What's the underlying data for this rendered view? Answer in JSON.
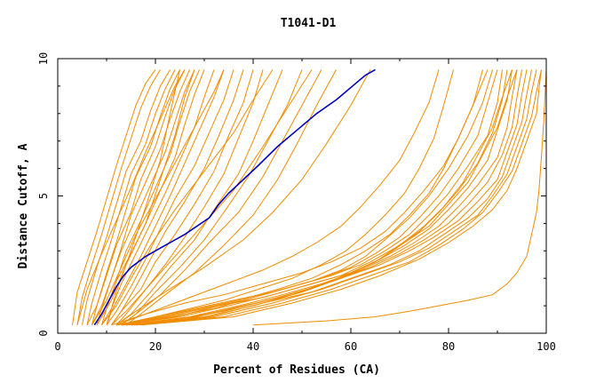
{
  "chart_data": {
    "type": "line",
    "title": "T1041-D1",
    "xlabel": "Percent of Residues (CA)",
    "ylabel": "Distance Cutoff, A",
    "xlim": [
      0,
      100
    ],
    "ylim": [
      0,
      10
    ],
    "xticks": [
      "0",
      "20",
      "40",
      "60",
      "80",
      "100"
    ],
    "yticks": [
      "0",
      "5",
      "10"
    ],
    "grid": false,
    "legend": "none",
    "colors": {
      "models": "#f08c00",
      "highlight": "#0000c0"
    },
    "highlight": {
      "x": [
        7.5,
        9,
        10.5,
        12,
        13.5,
        15,
        18,
        22,
        26,
        31,
        33,
        35,
        38,
        41,
        45,
        49,
        53,
        57,
        61,
        63,
        65
      ],
      "y": [
        0.3,
        0.7,
        1.2,
        1.7,
        2.1,
        2.4,
        2.8,
        3.2,
        3.6,
        4.2,
        4.7,
        5.1,
        5.6,
        6.1,
        6.8,
        7.4,
        8.0,
        8.5,
        9.1,
        9.4,
        9.6
      ]
    },
    "series": [
      {
        "x": [
          3,
          4,
          6,
          8,
          10,
          12,
          14,
          16,
          18,
          20
        ],
        "y": [
          0.3,
          1.5,
          2.6,
          3.7,
          4.9,
          6.1,
          7.2,
          8.3,
          9.1,
          9.6
        ]
      },
      {
        "x": [
          4,
          5,
          7,
          9,
          11,
          13,
          15,
          17,
          19,
          21
        ],
        "y": [
          0.3,
          1.3,
          2.5,
          3.6,
          4.8,
          6.0,
          7.1,
          8.2,
          9.0,
          9.6
        ]
      },
      {
        "x": [
          5,
          6,
          8,
          10,
          12,
          14,
          17,
          19,
          21,
          23
        ],
        "y": [
          0.3,
          1.2,
          2.4,
          3.5,
          4.7,
          5.9,
          7.0,
          8.1,
          9.0,
          9.6
        ]
      },
      {
        "x": [
          6,
          7,
          9,
          11,
          13,
          15,
          18,
          20,
          22,
          24
        ],
        "y": [
          0.3,
          1.1,
          2.3,
          3.4,
          4.6,
          5.8,
          6.9,
          8.0,
          8.9,
          9.6
        ]
      },
      {
        "x": [
          6,
          8,
          10,
          12,
          14,
          16,
          19,
          21,
          23,
          25
        ],
        "y": [
          0.3,
          1.0,
          2.2,
          3.3,
          4.5,
          5.7,
          6.8,
          7.9,
          8.9,
          9.6
        ]
      },
      {
        "x": [
          7,
          8,
          10,
          12,
          15,
          17,
          20,
          22,
          24,
          26
        ],
        "y": [
          0.3,
          1.0,
          2.1,
          3.2,
          4.4,
          5.6,
          6.8,
          7.9,
          8.9,
          9.6
        ]
      },
      {
        "x": [
          7,
          9,
          11,
          13,
          15,
          18,
          21,
          23,
          25,
          27
        ],
        "y": [
          0.3,
          1.0,
          2.0,
          3.1,
          4.3,
          5.5,
          6.7,
          7.8,
          8.8,
          9.6
        ]
      },
      {
        "x": [
          8,
          9,
          11,
          13,
          16,
          19,
          22,
          24,
          26,
          28
        ],
        "y": [
          0.3,
          0.9,
          2.0,
          3.0,
          4.2,
          5.4,
          6.6,
          7.7,
          8.8,
          9.6
        ]
      },
      {
        "x": [
          8,
          10,
          12,
          14,
          17,
          20,
          23,
          25,
          27,
          29
        ],
        "y": [
          0.3,
          0.9,
          1.9,
          3.0,
          4.1,
          5.3,
          6.5,
          7.7,
          8.8,
          9.6
        ]
      },
      {
        "x": [
          9,
          10,
          12,
          15,
          18,
          21,
          24,
          26,
          28,
          30
        ],
        "y": [
          0.3,
          0.9,
          1.9,
          2.9,
          4.0,
          5.2,
          6.4,
          7.6,
          8.7,
          9.6
        ]
      },
      {
        "x": [
          9,
          11,
          13,
          16,
          19,
          22,
          25,
          28,
          30,
          32
        ],
        "y": [
          0.3,
          0.9,
          1.8,
          2.9,
          4.0,
          5.1,
          6.3,
          7.5,
          8.6,
          9.6
        ]
      },
      {
        "x": [
          10,
          11,
          14,
          17,
          20,
          23,
          26,
          29,
          32,
          34
        ],
        "y": [
          0.3,
          0.8,
          1.8,
          2.8,
          3.9,
          5.0,
          6.2,
          7.4,
          8.6,
          9.6
        ]
      },
      {
        "x": [
          10,
          12,
          15,
          18,
          21,
          24,
          28,
          31,
          34,
          36
        ],
        "y": [
          0.3,
          0.8,
          1.7,
          2.7,
          3.8,
          4.9,
          6.1,
          7.3,
          8.5,
          9.6
        ]
      },
      {
        "x": [
          11,
          13,
          16,
          19,
          22,
          26,
          30,
          33,
          36,
          38
        ],
        "y": [
          0.3,
          0.8,
          1.7,
          2.7,
          3.7,
          4.8,
          6.0,
          7.2,
          8.5,
          9.6
        ]
      },
      {
        "x": [
          11,
          13,
          17,
          20,
          24,
          28,
          32,
          35,
          38,
          40
        ],
        "y": [
          0.3,
          0.8,
          1.6,
          2.6,
          3.6,
          4.7,
          5.9,
          7.2,
          8.4,
          9.6
        ]
      },
      {
        "x": [
          12,
          14,
          18,
          22,
          26,
          30,
          34,
          37,
          40,
          42
        ],
        "y": [
          0.3,
          0.7,
          1.6,
          2.5,
          3.5,
          4.6,
          5.8,
          7.1,
          8.4,
          9.6
        ]
      },
      {
        "x": [
          12,
          15,
          19,
          23,
          28,
          32,
          37,
          40,
          43,
          46
        ],
        "y": [
          0.3,
          0.7,
          1.5,
          2.4,
          3.4,
          4.5,
          5.8,
          7.0,
          8.3,
          9.6
        ]
      },
      {
        "x": [
          13,
          16,
          20,
          25,
          30,
          34,
          39,
          43,
          47,
          50
        ],
        "y": [
          0.3,
          0.7,
          1.5,
          2.4,
          3.4,
          4.4,
          5.7,
          7.0,
          8.3,
          9.6
        ]
      },
      {
        "x": [
          13,
          16,
          21,
          26,
          31,
          37,
          42,
          46,
          50,
          54
        ],
        "y": [
          0.3,
          0.7,
          1.4,
          2.3,
          3.3,
          4.4,
          5.7,
          7.0,
          8.3,
          9.6
        ]
      },
      {
        "x": [
          14,
          17,
          22,
          28,
          34,
          40,
          45,
          49,
          53,
          57
        ],
        "y": [
          0.3,
          0.7,
          1.4,
          2.2,
          3.2,
          4.3,
          5.6,
          6.9,
          8.3,
          9.6
        ]
      },
      {
        "x": [
          8,
          11,
          14,
          18,
          21,
          24,
          26,
          28
        ],
        "y": [
          0.3,
          1.2,
          2.5,
          4.0,
          5.6,
          7.2,
          8.6,
          9.6
        ]
      },
      {
        "x": [
          10,
          12,
          15,
          18,
          21,
          23,
          25
        ],
        "y": [
          0.3,
          1.5,
          3.0,
          4.6,
          6.3,
          8.0,
          9.6
        ]
      },
      {
        "x": [
          9,
          12,
          15,
          19,
          24,
          30,
          36,
          40,
          44
        ],
        "y": [
          0.3,
          1.0,
          2.0,
          3.2,
          4.5,
          5.9,
          7.3,
          8.5,
          9.6
        ]
      },
      {
        "x": [
          11,
          14,
          18,
          23,
          29,
          36,
          42,
          47,
          52
        ],
        "y": [
          0.3,
          0.8,
          1.6,
          2.6,
          3.8,
          5.2,
          6.8,
          8.2,
          9.6
        ]
      },
      {
        "x": [
          7,
          10,
          13,
          16,
          20,
          24,
          28,
          32,
          34
        ],
        "y": [
          0.3,
          1.2,
          2.4,
          3.6,
          4.9,
          6.2,
          7.5,
          8.8,
          9.6
        ]
      },
      {
        "x": [
          4,
          6,
          9,
          12,
          15,
          18,
          21,
          24,
          26
        ],
        "y": [
          0.3,
          1.6,
          2.9,
          4.1,
          5.3,
          6.6,
          7.8,
          9.0,
          9.6
        ]
      },
      {
        "x": [
          12,
          16,
          22,
          30,
          38,
          44,
          50,
          55,
          60,
          64
        ],
        "y": [
          0.3,
          0.8,
          1.5,
          2.4,
          3.4,
          4.4,
          5.6,
          6.9,
          8.3,
          9.6
        ]
      },
      {
        "x": [
          12,
          20,
          28,
          36,
          44,
          52,
          58,
          63,
          67,
          72,
          76,
          80,
          84,
          87,
          89
        ],
        "y": [
          0.3,
          0.6,
          0.9,
          1.2,
          1.5,
          1.9,
          2.3,
          2.8,
          3.4,
          4.2,
          5.0,
          6.0,
          7.2,
          8.4,
          9.6
        ]
      },
      {
        "x": [
          12,
          22,
          30,
          38,
          46,
          54,
          60,
          65,
          70,
          74,
          78,
          82,
          86,
          88,
          90
        ],
        "y": [
          0.3,
          0.6,
          0.9,
          1.2,
          1.6,
          2.0,
          2.4,
          2.9,
          3.5,
          4.2,
          5.0,
          6.0,
          7.2,
          8.4,
          9.6
        ]
      },
      {
        "x": [
          12,
          23,
          32,
          40,
          48,
          56,
          62,
          67,
          72,
          76,
          80,
          84,
          88,
          90,
          91
        ],
        "y": [
          0.3,
          0.6,
          0.9,
          1.3,
          1.7,
          2.1,
          2.5,
          3.0,
          3.6,
          4.3,
          5.1,
          6.1,
          7.2,
          8.4,
          9.6
        ]
      },
      {
        "x": [
          13,
          24,
          33,
          42,
          50,
          58,
          64,
          69,
          74,
          78,
          82,
          86,
          89,
          91,
          92
        ],
        "y": [
          0.3,
          0.6,
          1.0,
          1.3,
          1.7,
          2.1,
          2.6,
          3.1,
          3.7,
          4.4,
          5.2,
          6.2,
          7.3,
          8.5,
          9.6
        ]
      },
      {
        "x": [
          13,
          25,
          35,
          44,
          52,
          60,
          66,
          71,
          76,
          80,
          84,
          88,
          90,
          92,
          93
        ],
        "y": [
          0.3,
          0.6,
          1.0,
          1.4,
          1.8,
          2.2,
          2.7,
          3.2,
          3.8,
          4.5,
          5.3,
          6.3,
          7.4,
          8.5,
          9.6
        ]
      },
      {
        "x": [
          14,
          27,
          37,
          46,
          54,
          62,
          68,
          73,
          78,
          82,
          86,
          90,
          92,
          93,
          94
        ],
        "y": [
          0.3,
          0.6,
          1.0,
          1.4,
          1.8,
          2.3,
          2.8,
          3.3,
          3.9,
          4.6,
          5.4,
          6.4,
          7.5,
          8.6,
          9.6
        ]
      },
      {
        "x": [
          14,
          28,
          38,
          48,
          56,
          64,
          70,
          75,
          80,
          84,
          88,
          91,
          93,
          94,
          95
        ],
        "y": [
          0.3,
          0.6,
          1.0,
          1.4,
          1.9,
          2.4,
          2.9,
          3.4,
          4.0,
          4.7,
          5.5,
          6.5,
          7.5,
          8.6,
          9.6
        ]
      },
      {
        "x": [
          15,
          30,
          40,
          50,
          58,
          66,
          72,
          77,
          82,
          86,
          90,
          92,
          94,
          95,
          96
        ],
        "y": [
          0.3,
          0.6,
          1.0,
          1.5,
          2.0,
          2.5,
          3.0,
          3.5,
          4.1,
          4.8,
          5.6,
          6.6,
          7.6,
          8.7,
          9.6
        ]
      },
      {
        "x": [
          15,
          31,
          42,
          52,
          60,
          68,
          74,
          79,
          84,
          88,
          91,
          93,
          95,
          96,
          97
        ],
        "y": [
          0.3,
          0.6,
          1.1,
          1.5,
          2.0,
          2.5,
          3.0,
          3.6,
          4.2,
          4.9,
          5.7,
          6.7,
          7.7,
          8.7,
          9.6
        ]
      },
      {
        "x": [
          16,
          32,
          44,
          54,
          62,
          70,
          76,
          81,
          86,
          89,
          92,
          94,
          96,
          97,
          98
        ],
        "y": [
          0.3,
          0.6,
          1.1,
          1.6,
          2.1,
          2.6,
          3.1,
          3.7,
          4.3,
          5.0,
          5.8,
          6.8,
          7.8,
          8.8,
          9.6
        ]
      },
      {
        "x": [
          16,
          34,
          46,
          56,
          64,
          72,
          78,
          83,
          87,
          90,
          93,
          95,
          97,
          98,
          99
        ],
        "y": [
          0.3,
          0.6,
          1.1,
          1.6,
          2.1,
          2.6,
          3.2,
          3.8,
          4.4,
          5.1,
          5.9,
          6.9,
          7.9,
          8.8,
          9.6
        ]
      },
      {
        "x": [
          17,
          36,
          48,
          58,
          66,
          74,
          80,
          85,
          89,
          92,
          94,
          96,
          98,
          98.5,
          99
        ],
        "y": [
          0.3,
          0.6,
          1.1,
          1.6,
          2.1,
          2.7,
          3.3,
          3.9,
          4.5,
          5.2,
          6.0,
          7.0,
          8.0,
          8.9,
          9.6
        ]
      },
      {
        "x": [
          12,
          21,
          29,
          37,
          45,
          52,
          58,
          63,
          68,
          72,
          76,
          79,
          82,
          85,
          87
        ],
        "y": [
          0.3,
          0.6,
          0.9,
          1.2,
          1.6,
          2.0,
          2.5,
          3.0,
          3.6,
          4.3,
          5.1,
          6.0,
          7.1,
          8.3,
          9.6
        ]
      },
      {
        "x": [
          13,
          20,
          27,
          34,
          41,
          48,
          54,
          59,
          63,
          67,
          71,
          74,
          77,
          79,
          81
        ],
        "y": [
          0.3,
          0.6,
          0.9,
          1.2,
          1.6,
          2.0,
          2.5,
          3.0,
          3.6,
          4.3,
          5.1,
          6.0,
          7.1,
          8.3,
          9.6
        ]
      },
      {
        "x": [
          12,
          18,
          24,
          30,
          36,
          42,
          48,
          53,
          58,
          62,
          66,
          70,
          73,
          76,
          78
        ],
        "y": [
          0.3,
          0.7,
          1.1,
          1.5,
          1.9,
          2.3,
          2.8,
          3.3,
          3.9,
          4.6,
          5.4,
          6.3,
          7.3,
          8.4,
          9.6
        ]
      },
      {
        "x": [
          11,
          18,
          26,
          34,
          42,
          50,
          56,
          62,
          67,
          71,
          75,
          79,
          82,
          85,
          88
        ],
        "y": [
          0.3,
          0.7,
          1.1,
          1.4,
          1.8,
          2.2,
          2.6,
          3.1,
          3.7,
          4.4,
          5.2,
          6.1,
          7.1,
          8.3,
          9.6
        ]
      },
      {
        "x": [
          13,
          24,
          34,
          43,
          51,
          59,
          65,
          70,
          75,
          79,
          83,
          86,
          89,
          91,
          93
        ],
        "y": [
          0.3,
          0.5,
          0.8,
          1.2,
          1.6,
          2.1,
          2.6,
          3.2,
          3.9,
          4.6,
          5.5,
          6.5,
          7.5,
          8.6,
          9.6
        ]
      },
      {
        "x": [
          14,
          26,
          36,
          45,
          53,
          60,
          66,
          71,
          76,
          80,
          84,
          87,
          90,
          92,
          94
        ],
        "y": [
          0.3,
          0.5,
          0.9,
          1.3,
          1.7,
          2.2,
          2.7,
          3.3,
          3.9,
          4.7,
          5.5,
          6.5,
          7.5,
          8.6,
          9.6
        ]
      },
      {
        "x": [
          40,
          55,
          65,
          72,
          78,
          84,
          89,
          92,
          94,
          96,
          97,
          98,
          98.5,
          99,
          99.5,
          100
        ],
        "y": [
          0.3,
          0.45,
          0.6,
          0.8,
          1.0,
          1.2,
          1.4,
          1.8,
          2.2,
          2.8,
          3.6,
          4.4,
          5.2,
          6.4,
          7.8,
          9.6
        ]
      }
    ]
  }
}
